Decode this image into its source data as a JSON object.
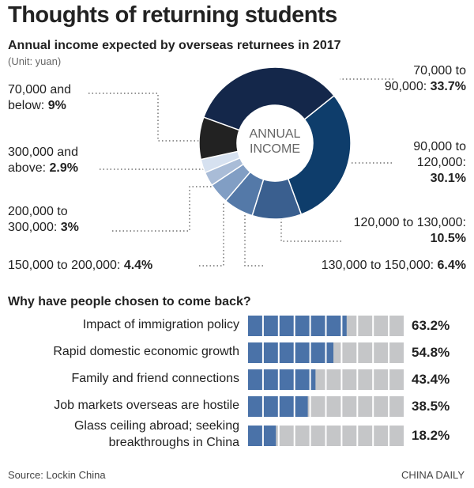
{
  "title": "Thoughts of returning students",
  "source": "Source: Lockin China",
  "credit": "CHINA DAILY",
  "chart_data": [
    {
      "type": "donut",
      "title": "Annual income expected by overseas returnees in 2017",
      "subtitle": "(Unit: yuan)",
      "center_label": "ANNUAL INCOME",
      "categories": [
        "70,000 to 90,000:",
        "90,000 to 120,000:",
        "120,000 to 130,000:",
        "130,000 to 150,000:",
        "150,000 to 200,000:",
        "200,000 to 300,000:",
        "300,000 and above:",
        "70,000 and below:"
      ],
      "values": [
        33.7,
        30.1,
        10.5,
        6.4,
        4.4,
        3,
        2.9,
        9
      ],
      "value_labels": [
        "33.7%",
        "30.1%",
        "10.5%",
        "6.4%",
        "4.4%",
        "3%",
        "2.9%",
        "9%"
      ],
      "colors": [
        "#14274a",
        "#0e3d6b",
        "#3a5f8f",
        "#5479a8",
        "#819ec4",
        "#a9bcd7",
        "#d6e1f0",
        "#222222"
      ]
    },
    {
      "type": "bar",
      "orientation": "horizontal",
      "title": "Why have people chosen to come back?",
      "categories": [
        "Impact of immigration policy",
        "Rapid domestic economic growth",
        "Family and friend connections",
        "Job markets overseas are hostile",
        "Glass ceiling abroad; seeking breakthroughs in China"
      ],
      "values": [
        63.2,
        54.8,
        43.4,
        38.5,
        18.2
      ],
      "value_labels": [
        "63.2%",
        "54.8%",
        "43.4%",
        "38.5%",
        "18.2%"
      ],
      "color": "#4a72a8",
      "track_color": "#c5c6c8",
      "xlim": [
        0,
        100
      ],
      "xticks": [
        0,
        10,
        20,
        30,
        40,
        50,
        60,
        70,
        80,
        90,
        100
      ],
      "grid": true
    }
  ]
}
